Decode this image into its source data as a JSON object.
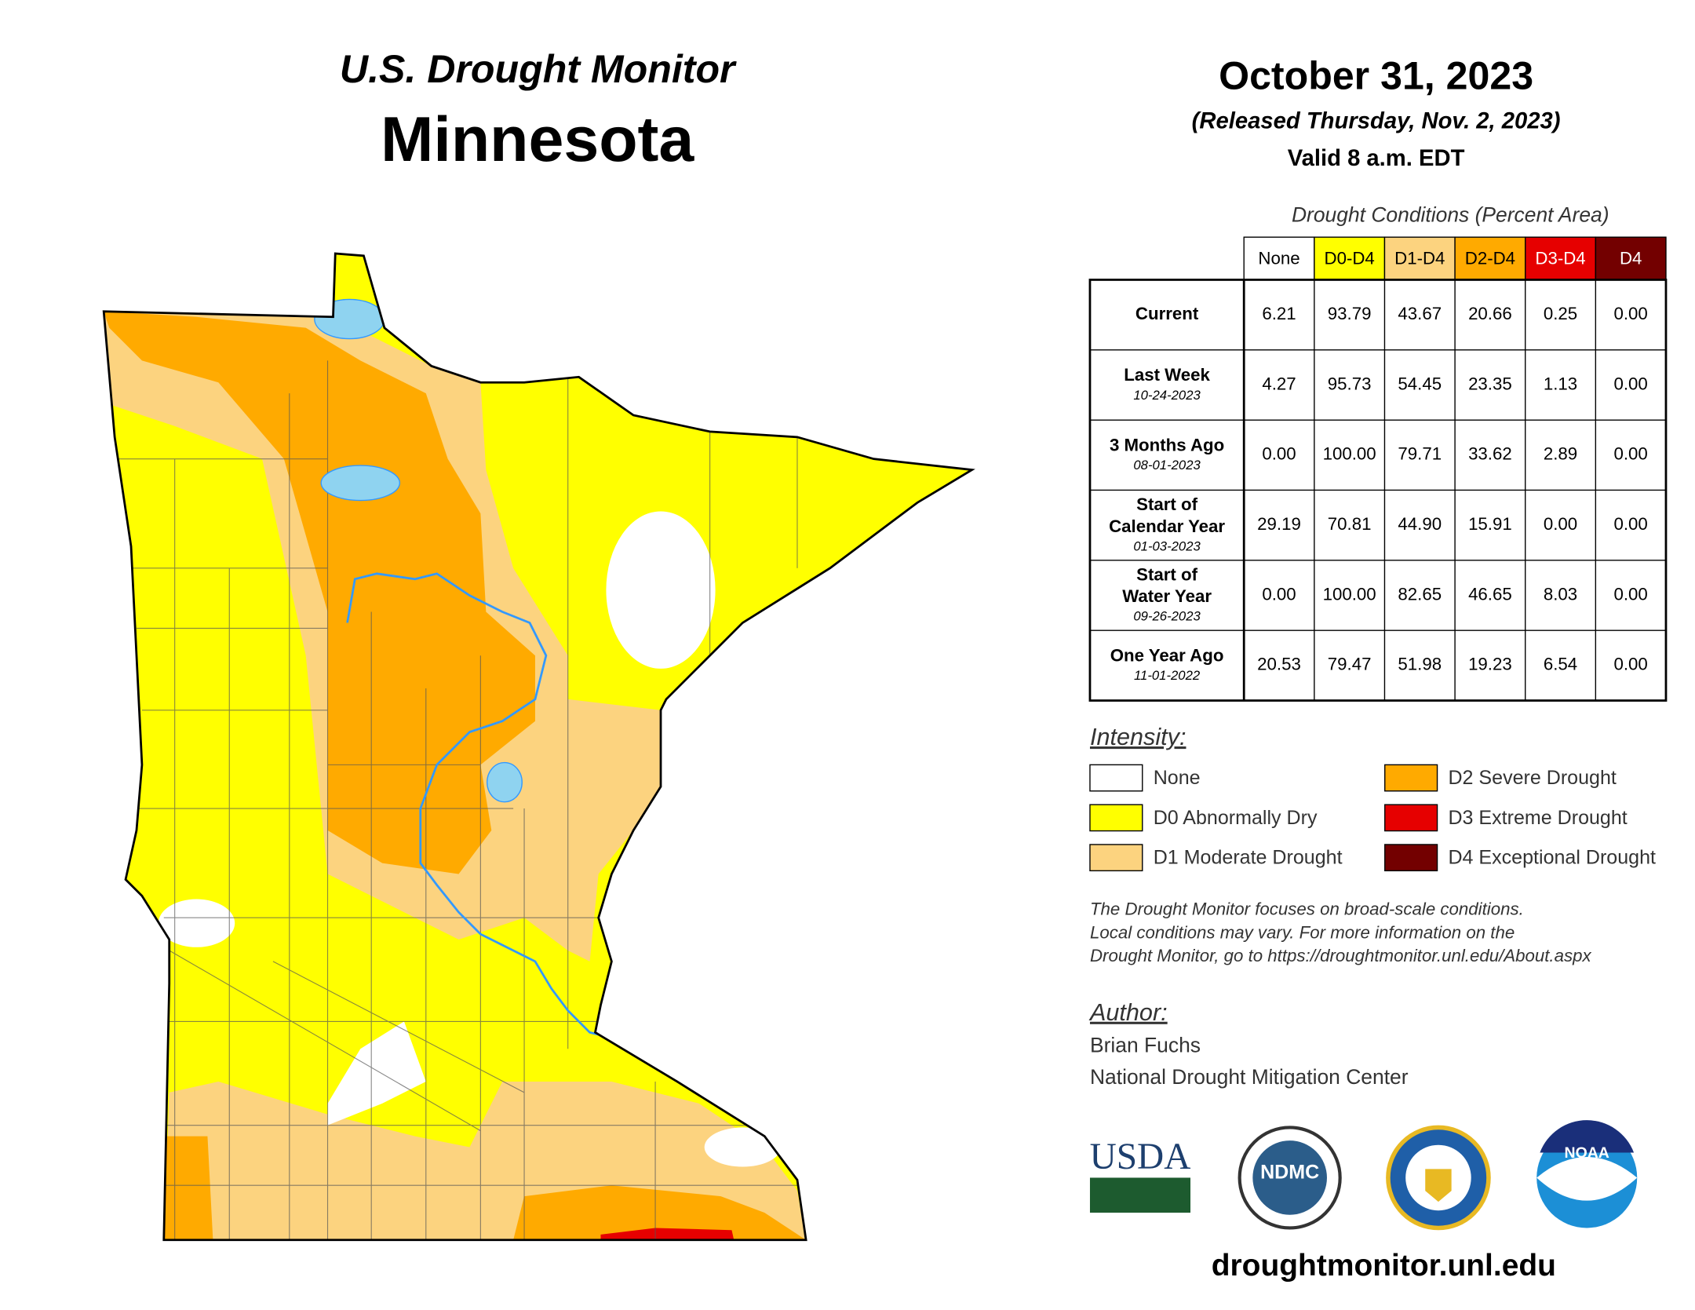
{
  "header": {
    "title": "U.S. Drought Monitor",
    "state": "Minnesota"
  },
  "date": {
    "title": "October 31, 2023",
    "released": "(Released Thursday, Nov. 2, 2023)",
    "valid": "Valid 8 a.m. EDT"
  },
  "table": {
    "caption": "Drought Conditions (Percent Area)",
    "columns": [
      {
        "label": "None",
        "color": "#ffffff"
      },
      {
        "label": "D0-D4",
        "color": "#ffff00"
      },
      {
        "label": "D1-D4",
        "color": "#fcd37f"
      },
      {
        "label": "D2-D4",
        "color": "#ffaa00"
      },
      {
        "label": "D3-D4",
        "color": "#e60000"
      },
      {
        "label": "D4",
        "color": "#730000"
      }
    ],
    "rows": [
      {
        "label": [
          "Current"
        ],
        "values": [
          "6.21",
          "93.79",
          "43.67",
          "20.66",
          "0.25",
          "0.00"
        ]
      },
      {
        "label": [
          "Last Week"
        ],
        "date": "10-24-2023",
        "values": [
          "4.27",
          "95.73",
          "54.45",
          "23.35",
          "1.13",
          "0.00"
        ]
      },
      {
        "label": [
          "3 Months Ago"
        ],
        "date": "08-01-2023",
        "values": [
          "0.00",
          "100.00",
          "79.71",
          "33.62",
          "2.89",
          "0.00"
        ]
      },
      {
        "label": [
          "Start of",
          "Calendar Year"
        ],
        "date": "01-03-2023",
        "values": [
          "29.19",
          "70.81",
          "44.90",
          "15.91",
          "0.00",
          "0.00"
        ]
      },
      {
        "label": [
          "Start of",
          "Water Year"
        ],
        "date": "09-26-2023",
        "values": [
          "0.00",
          "100.00",
          "82.65",
          "46.65",
          "8.03",
          "0.00"
        ]
      },
      {
        "label": [
          "One Year Ago"
        ],
        "date": "11-01-2022",
        "values": [
          "20.53",
          "79.47",
          "51.98",
          "19.23",
          "6.54",
          "0.00"
        ]
      }
    ]
  },
  "legend": {
    "heading": "Intensity:",
    "items": [
      {
        "label": "None",
        "color": "#ffffff"
      },
      {
        "label": "D0 Abnormally Dry",
        "color": "#ffff00"
      },
      {
        "label": "D1 Moderate Drought",
        "color": "#fcd37f"
      },
      {
        "label": "D2 Severe Drought",
        "color": "#ffaa00"
      },
      {
        "label": "D3 Extreme Drought",
        "color": "#e60000"
      },
      {
        "label": "D4 Exceptional Drought",
        "color": "#730000"
      }
    ]
  },
  "note": [
    "The Drought Monitor focuses on broad-scale conditions.",
    "Local conditions may vary. For more information on the",
    "Drought Monitor, go to https://droughtmonitor.unl.edu/About.aspx"
  ],
  "author": {
    "heading": "Author:",
    "name": "Brian Fuchs",
    "org": "National Drought Mitigation Center"
  },
  "logos": [
    "USDA",
    "NDMC",
    "NOAA"
  ],
  "url": "droughtmonitor.unl.edu"
}
